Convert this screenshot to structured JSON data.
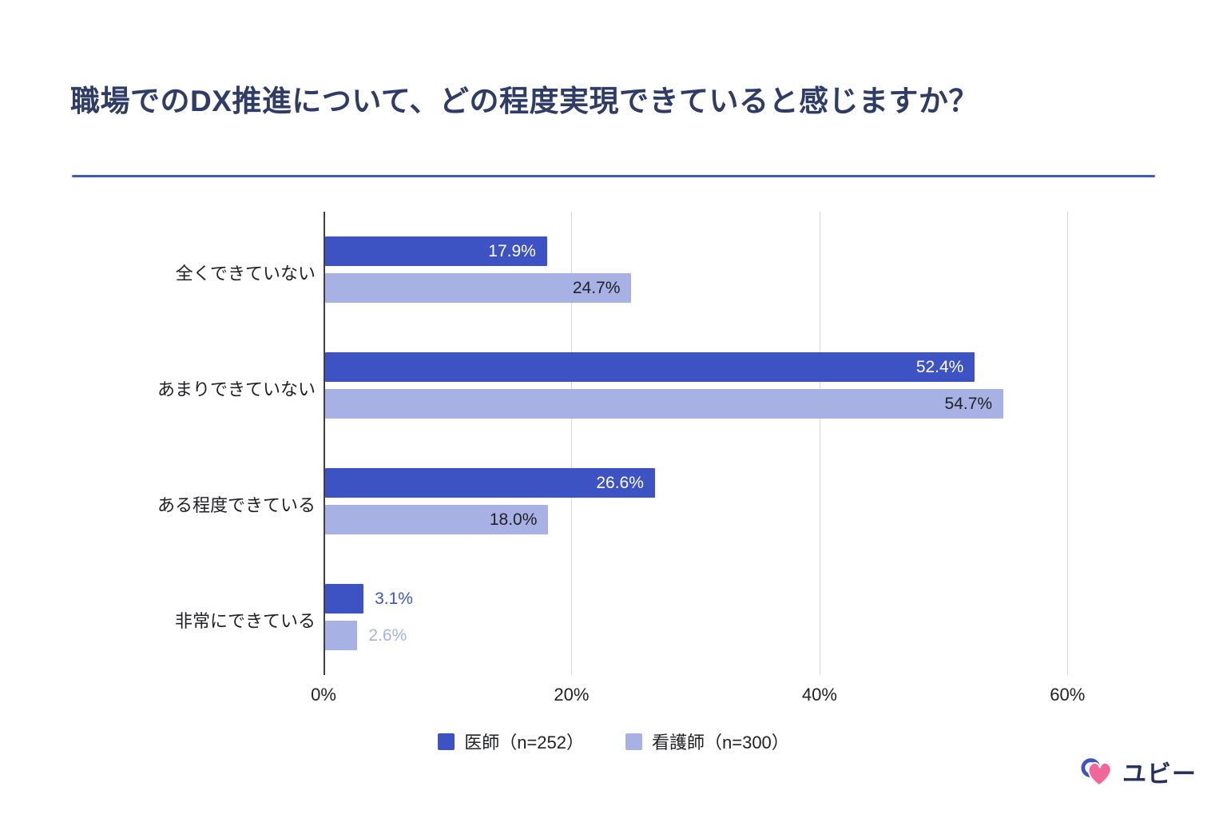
{
  "page": {
    "title": "職場でのDX推進について、どの程度実現できていると感じますか？",
    "divider_color": "#3f58c9",
    "background_color": "#ffffff"
  },
  "chart_data": {
    "type": "bar",
    "orientation": "horizontal",
    "title": "職場でのDX推進について、どの程度実現できていると感じますか？",
    "categories": [
      "全くできていない",
      "あまりできていない",
      "ある程度できている",
      "非常にできている"
    ],
    "series": [
      {
        "name": "医師（n=252）",
        "color": "#3d53c4",
        "inside_label_color": "#ffffff",
        "values": [
          17.9,
          52.4,
          26.6,
          3.1
        ],
        "value_labels": [
          "17.9%",
          "52.4%",
          "26.6%",
          "3.1%"
        ]
      },
      {
        "name": "看護師（n=300）",
        "color": "#a8b1e3",
        "inside_label_color": "#202124",
        "values": [
          24.7,
          54.7,
          18.0,
          2.6
        ],
        "value_labels": [
          "24.7%",
          "54.7%",
          "18.0%",
          "2.6%"
        ]
      }
    ],
    "x_ticks": [
      {
        "label": "0%",
        "value": 0
      },
      {
        "label": "20%",
        "value": 20
      },
      {
        "label": "40%",
        "value": 40
      },
      {
        "label": "60%",
        "value": 60
      }
    ],
    "xlim": [
      0,
      67
    ],
    "grid": true,
    "legend_position": "bottom"
  },
  "footer": {
    "brand": "ユビー"
  }
}
